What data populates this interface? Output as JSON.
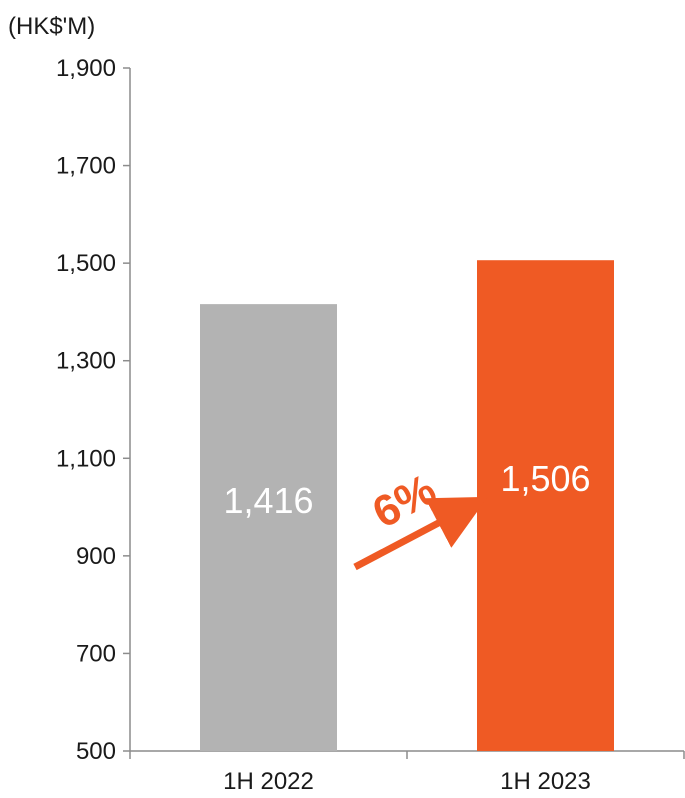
{
  "chart_data": {
    "type": "bar",
    "unit_label": "(HK$'M)",
    "categories": [
      "1H 2022",
      "1H 2023"
    ],
    "values": [
      1416,
      1506
    ],
    "value_labels": [
      "1,416",
      "1,506"
    ],
    "bar_colors": [
      "#b3b3b3",
      "#ef5a24"
    ],
    "ylim": [
      500,
      1900
    ],
    "yticks": [
      500,
      700,
      900,
      1100,
      1300,
      1500,
      1700,
      1900
    ],
    "ytick_labels": [
      "500",
      "700",
      "900",
      "1,100",
      "1,300",
      "1,500",
      "1,700",
      "1,900"
    ],
    "grid": false,
    "annotation": {
      "text": "6%",
      "color": "#ef5a24",
      "from_category": "1H 2022",
      "to_category": "1H 2023"
    }
  }
}
